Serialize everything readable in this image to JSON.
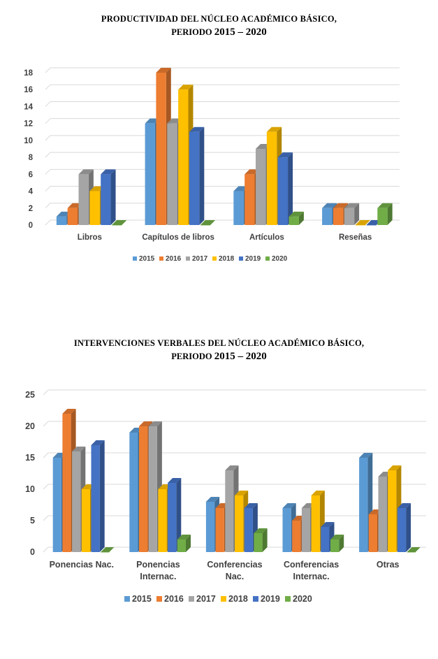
{
  "charts": [
    {
      "title_line1": "PRODUCTIVIDAD DEL NÚCLEO ACADÉMICO BÁSICO,",
      "title_line2_prefix": "PERIODO",
      "title_line2_years": "2015 – 2020"
    },
    {
      "title_line1": "INTERVENCIONES VERBALES DEL NÚCLEO ACADÉMICO BÁSICO,",
      "title_line2_prefix": "PERIODO",
      "title_line2_years": "2015 – 2020"
    }
  ],
  "colors": {
    "2015": "#5B9BD5",
    "2016": "#ED7D31",
    "2017": "#A5A5A5",
    "2018": "#FFC000",
    "2019": "#4472C4",
    "2020": "#70AD47"
  },
  "chart_data": [
    {
      "type": "bar",
      "title": "PRODUCTIVIDAD DEL NÚCLEO ACADÉMICO BÁSICO, PERIODO 2015 – 2020",
      "categories": [
        "Libros",
        "Capítulos de libros",
        "Artículos",
        "Reseñas"
      ],
      "series": [
        {
          "name": "2015",
          "values": [
            1,
            12,
            4,
            2
          ]
        },
        {
          "name": "2016",
          "values": [
            2,
            18,
            6,
            2
          ]
        },
        {
          "name": "2017",
          "values": [
            6,
            12,
            9,
            2
          ]
        },
        {
          "name": "2018",
          "values": [
            4,
            16,
            11,
            0
          ]
        },
        {
          "name": "2019",
          "values": [
            6,
            11,
            8,
            0
          ]
        },
        {
          "name": "2020",
          "values": [
            0,
            0,
            1,
            2
          ]
        }
      ],
      "yticks": [
        "0",
        "2",
        "4",
        "6",
        "8",
        "10",
        "12",
        "14",
        "16",
        "18"
      ],
      "ylim": [
        0,
        18
      ],
      "grid": true,
      "legend": "bottom"
    },
    {
      "type": "bar",
      "title": "INTERVENCIONES VERBALES DEL NÚCLEO ACADÉMICO BÁSICO, PERIODO 2015 – 2020",
      "categories": [
        "Ponencias Nac.",
        "Ponencias Internac.",
        "Conferencias Nac.",
        "Conferencias Internac.",
        "Otras"
      ],
      "series": [
        {
          "name": "2015",
          "values": [
            15,
            19,
            8,
            7,
            15
          ]
        },
        {
          "name": "2016",
          "values": [
            22,
            20,
            7,
            5,
            6
          ]
        },
        {
          "name": "2017",
          "values": [
            16,
            20,
            13,
            7,
            12
          ]
        },
        {
          "name": "2018",
          "values": [
            10,
            10,
            9,
            9,
            13
          ]
        },
        {
          "name": "2019",
          "values": [
            17,
            11,
            7,
            4,
            7
          ]
        },
        {
          "name": "2020",
          "values": [
            0,
            2,
            3,
            2,
            0
          ]
        }
      ],
      "yticks": [
        "0",
        "5",
        "10",
        "15",
        "20",
        "25"
      ],
      "ylim": [
        0,
        25
      ],
      "grid": true,
      "legend": "bottom"
    }
  ]
}
